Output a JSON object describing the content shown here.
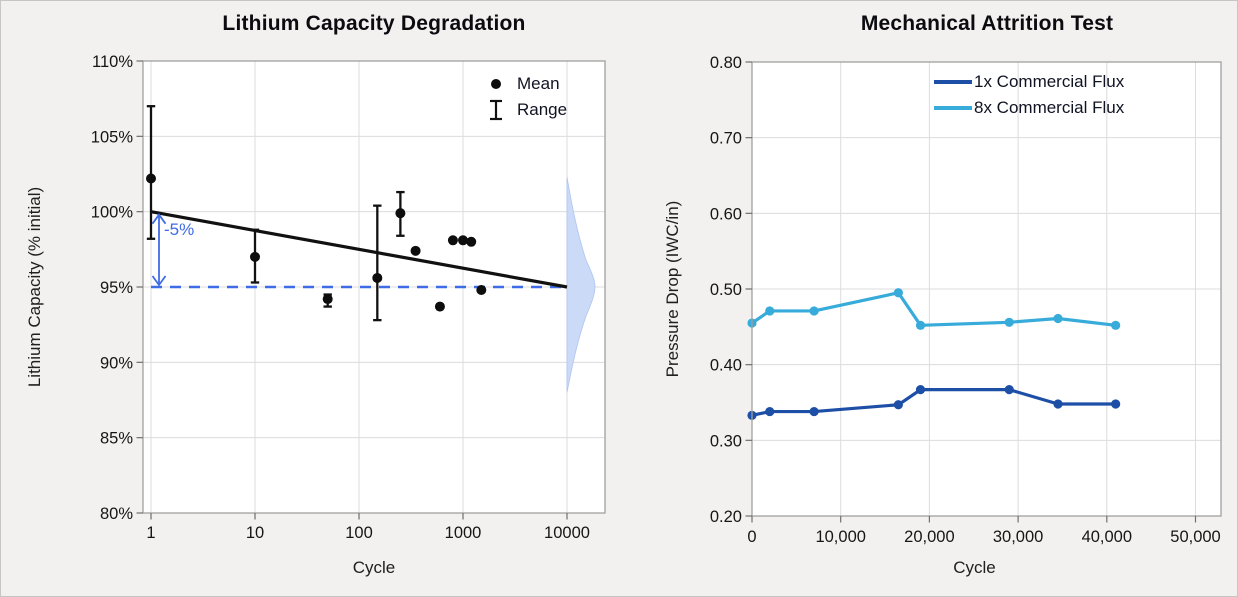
{
  "page": {
    "background_color": "#f2f1ef"
  },
  "chart_data": [
    {
      "type": "scatter",
      "title": "Lithium Capacity Degradation",
      "xlabel": "Cycle",
      "ylabel": "Lithium Capacity (% initial)",
      "x_scale": "log",
      "xlim": [
        1,
        23000
      ],
      "ylim": [
        80,
        110
      ],
      "grid": true,
      "xtick_values": [
        1,
        10,
        100,
        1000,
        10000
      ],
      "xtick_labels": [
        "1",
        "10",
        "100",
        "1000",
        "10000"
      ],
      "ytick_values": [
        80,
        85,
        90,
        95,
        100,
        105,
        110
      ],
      "ytick_labels": [
        "80%",
        "85%",
        "90%",
        "95%",
        "100%",
        "105%",
        "110%"
      ],
      "legend": {
        "position": "top-right",
        "entries": [
          {
            "symbol": "dot",
            "label": "Mean"
          },
          {
            "symbol": "range-bar",
            "label": "Range"
          }
        ]
      },
      "points": [
        {
          "cycle": 1,
          "mean": 102.2,
          "range_lo": 98.2,
          "range_hi": 107.0
        },
        {
          "cycle": 10,
          "mean": 97.0,
          "range_lo": 95.3,
          "range_hi": 98.8
        },
        {
          "cycle": 50,
          "mean": 94.2,
          "range_lo": 93.7,
          "range_hi": 94.5
        },
        {
          "cycle": 150,
          "mean": 95.6,
          "range_lo": 92.8,
          "range_hi": 100.4
        },
        {
          "cycle": 250,
          "mean": 99.9,
          "range_lo": 98.4,
          "range_hi": 101.3
        },
        {
          "cycle": 350,
          "mean": 97.4,
          "range_lo": 97.4,
          "range_hi": 97.4
        },
        {
          "cycle": 600,
          "mean": 93.7,
          "range_lo": 93.7,
          "range_hi": 93.7
        },
        {
          "cycle": 800,
          "mean": 98.1,
          "range_lo": 98.1,
          "range_hi": 98.1
        },
        {
          "cycle": 1000,
          "mean": 98.1,
          "range_lo": 98.1,
          "range_hi": 98.1
        },
        {
          "cycle": 1200,
          "mean": 98.0,
          "range_lo": 98.0,
          "range_hi": 98.0
        },
        {
          "cycle": 1500,
          "mean": 94.8,
          "range_lo": 94.8,
          "range_hi": 94.8
        }
      ],
      "trend_line": {
        "x": [
          1,
          10000
        ],
        "y": [
          100,
          95
        ],
        "color": "#111111"
      },
      "reference_line": {
        "y": 95,
        "style": "dashed",
        "color": "#3e6be6"
      },
      "annotation": {
        "text": "-5%",
        "from_pct": 100,
        "to_pct": 95,
        "color": "#3e6be6"
      },
      "density_curve": {
        "side": "right-margin",
        "center_pct": 95,
        "span_pct": [
          88,
          102.3
        ],
        "fill": "#cbdaf7"
      }
    },
    {
      "type": "line",
      "title": "Mechanical Attrition Test",
      "xlabel": "Cycle",
      "ylabel": "Pressure Drop (IWC/in)",
      "xlim": [
        0,
        52500
      ],
      "ylim": [
        0.2,
        0.8
      ],
      "grid": true,
      "xtick_values": [
        0,
        10000,
        20000,
        30000,
        40000,
        50000
      ],
      "xtick_labels": [
        "0",
        "10,000",
        "20,000",
        "30,000",
        "40,000",
        "50,000"
      ],
      "ytick_values": [
        0.2,
        0.3,
        0.4,
        0.5,
        0.6,
        0.7,
        0.8
      ],
      "ytick_labels": [
        "0.20",
        "0.30",
        "0.40",
        "0.50",
        "0.60",
        "0.70",
        "0.80"
      ],
      "legend": {
        "position": "top-right"
      },
      "x": [
        0,
        2000,
        7000,
        16500,
        19000,
        29000,
        34500,
        41000
      ],
      "series": [
        {
          "name": "1x Commercial Flux",
          "color": "#1d4fa6",
          "values": [
            0.333,
            0.338,
            0.338,
            0.347,
            0.367,
            0.367,
            0.348,
            0.348
          ]
        },
        {
          "name": "8x Commercial Flux",
          "color": "#37abd9",
          "values": [
            0.455,
            0.471,
            0.471,
            0.495,
            0.452,
            0.456,
            0.461,
            0.452
          ]
        }
      ]
    }
  ]
}
